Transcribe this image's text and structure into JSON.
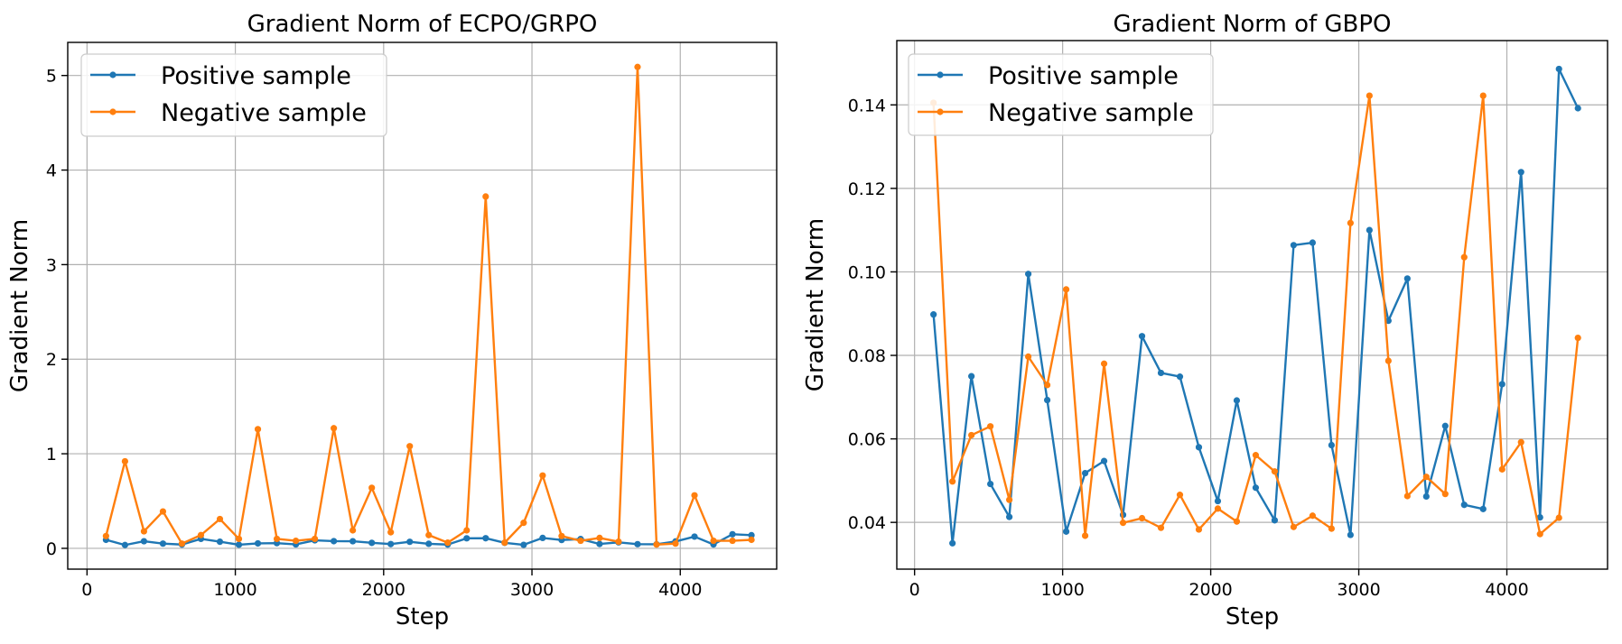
{
  "chart_data": [
    {
      "type": "line",
      "title": "Gradient Norm of ECPO/GRPO",
      "xlabel": "Step",
      "ylabel": "Gradient Norm",
      "xlim": [
        -130,
        4650
      ],
      "ylim": [
        -0.22,
        5.35
      ],
      "xticks": [
        0,
        1000,
        2000,
        3000,
        4000
      ],
      "xtick_labels": [
        "0",
        "1000",
        "2000",
        "3000",
        "4000"
      ],
      "yticks": [
        0,
        1,
        2,
        3,
        4,
        5
      ],
      "ytick_labels": [
        "0",
        "1",
        "2",
        "3",
        "4",
        "5"
      ],
      "grid": true,
      "legend_position": "upper-left",
      "x": [
        128,
        256,
        384,
        512,
        640,
        768,
        896,
        1024,
        1152,
        1280,
        1408,
        1536,
        1664,
        1792,
        1920,
        2048,
        2176,
        2304,
        2432,
        2560,
        2688,
        2816,
        2944,
        3072,
        3200,
        3328,
        3456,
        3584,
        3712,
        3840,
        3968,
        4096,
        4224,
        4352,
        4480
      ],
      "series": [
        {
          "name": "Positive sample",
          "color": "#1f77b4",
          "values": [
            0.09,
            0.035,
            0.075,
            0.05,
            0.04,
            0.1,
            0.07,
            0.038,
            0.052,
            0.055,
            0.042,
            0.085,
            0.076,
            0.075,
            0.058,
            0.045,
            0.069,
            0.048,
            0.04,
            0.106,
            0.107,
            0.058,
            0.037,
            0.11,
            0.088,
            0.098,
            0.046,
            0.063,
            0.044,
            0.043,
            0.073,
            0.124,
            0.041,
            0.149,
            0.139
          ]
        },
        {
          "name": "Negative sample",
          "color": "#ff7f0e",
          "values": [
            0.13,
            0.92,
            0.18,
            0.39,
            0.05,
            0.14,
            0.31,
            0.1,
            1.26,
            0.1,
            0.08,
            0.1,
            1.27,
            0.19,
            0.64,
            0.17,
            1.08,
            0.14,
            0.06,
            0.19,
            3.72,
            0.06,
            0.27,
            0.77,
            0.13,
            0.08,
            0.11,
            0.07,
            5.09,
            0.04,
            0.05,
            0.56,
            0.08,
            0.08,
            0.09
          ]
        }
      ]
    },
    {
      "type": "line",
      "title": "Gradient Norm of GBPO",
      "xlabel": "Step",
      "ylabel": "Gradient Norm",
      "xlim": [
        -120,
        4680
      ],
      "ylim": [
        0.0288,
        0.1554
      ],
      "xticks": [
        0,
        1000,
        2000,
        3000,
        4000
      ],
      "xtick_labels": [
        "0",
        "1000",
        "2000",
        "3000",
        "4000"
      ],
      "yticks": [
        0.04,
        0.06,
        0.08,
        0.1,
        0.12,
        0.14
      ],
      "ytick_labels": [
        "0.04",
        "0.06",
        "0.08",
        "0.10",
        "0.12",
        "0.14"
      ],
      "grid": true,
      "legend_position": "upper-left",
      "x": [
        128,
        256,
        384,
        512,
        640,
        768,
        896,
        1024,
        1152,
        1280,
        1408,
        1536,
        1664,
        1792,
        1920,
        2048,
        2176,
        2304,
        2432,
        2560,
        2688,
        2816,
        2944,
        3072,
        3200,
        3328,
        3456,
        3584,
        3712,
        3840,
        3968,
        4096,
        4224,
        4352,
        4480
      ],
      "series": [
        {
          "name": "Positive sample",
          "color": "#1f77b4",
          "values": [
            0.0898,
            0.035,
            0.075,
            0.0492,
            0.0413,
            0.0995,
            0.0693,
            0.0378,
            0.0518,
            0.0547,
            0.0418,
            0.0846,
            0.0758,
            0.0749,
            0.058,
            0.0451,
            0.0692,
            0.0483,
            0.0405,
            0.1064,
            0.107,
            0.0585,
            0.037,
            0.11,
            0.0883,
            0.0984,
            0.0462,
            0.0631,
            0.0442,
            0.0432,
            0.0731,
            0.1239,
            0.0412,
            0.1486,
            0.1392
          ]
        },
        {
          "name": "Negative sample",
          "color": "#ff7f0e",
          "values": [
            0.1405,
            0.0498,
            0.0609,
            0.063,
            0.0454,
            0.0797,
            0.0729,
            0.0958,
            0.0368,
            0.078,
            0.0399,
            0.041,
            0.0387,
            0.0466,
            0.0383,
            0.0433,
            0.0402,
            0.0561,
            0.0522,
            0.0389,
            0.0416,
            0.0385,
            0.1117,
            0.1422,
            0.0787,
            0.0463,
            0.0509,
            0.0468,
            0.1035,
            0.1422,
            0.0527,
            0.0592,
            0.0372,
            0.0411,
            0.0842
          ]
        }
      ]
    }
  ]
}
